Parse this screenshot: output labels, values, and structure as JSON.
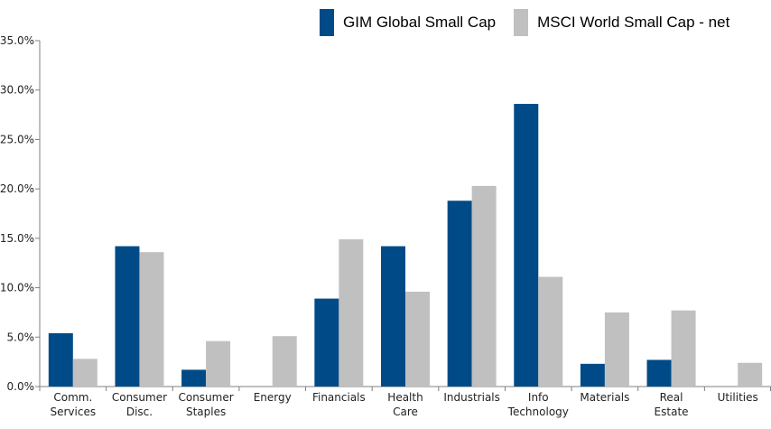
{
  "chart_data": {
    "type": "bar",
    "categories": [
      [
        "Comm.",
        "Services"
      ],
      [
        "Consumer",
        "Disc."
      ],
      [
        "Consumer",
        "Staples"
      ],
      [
        "Energy"
      ],
      [
        "Financials"
      ],
      [
        "Health",
        "Care"
      ],
      [
        "Industrials"
      ],
      [
        "Info",
        "Technology"
      ],
      [
        "Materials"
      ],
      [
        "Real",
        "Estate"
      ],
      [
        "Utilities"
      ]
    ],
    "series": [
      {
        "name": "GIM Global Small Cap",
        "color": "#004b87",
        "values": [
          5.4,
          14.2,
          1.7,
          0.0,
          8.9,
          14.2,
          18.8,
          28.6,
          2.3,
          2.7,
          0.0
        ]
      },
      {
        "name": "MSCI World Small Cap - net",
        "color": "#c0c0c0",
        "values": [
          2.8,
          13.6,
          4.6,
          5.1,
          14.9,
          9.6,
          20.3,
          11.1,
          7.5,
          7.7,
          2.4
        ]
      }
    ],
    "title": "",
    "xlabel": "",
    "ylabel": "",
    "ylim": [
      0,
      35
    ],
    "yticks": [
      "0.0%",
      "5.0%",
      "10.0%",
      "15.0%",
      "20.0%",
      "25.0%",
      "30.0%",
      "35.0%"
    ],
    "grid": false,
    "legend_position": "top-right"
  }
}
